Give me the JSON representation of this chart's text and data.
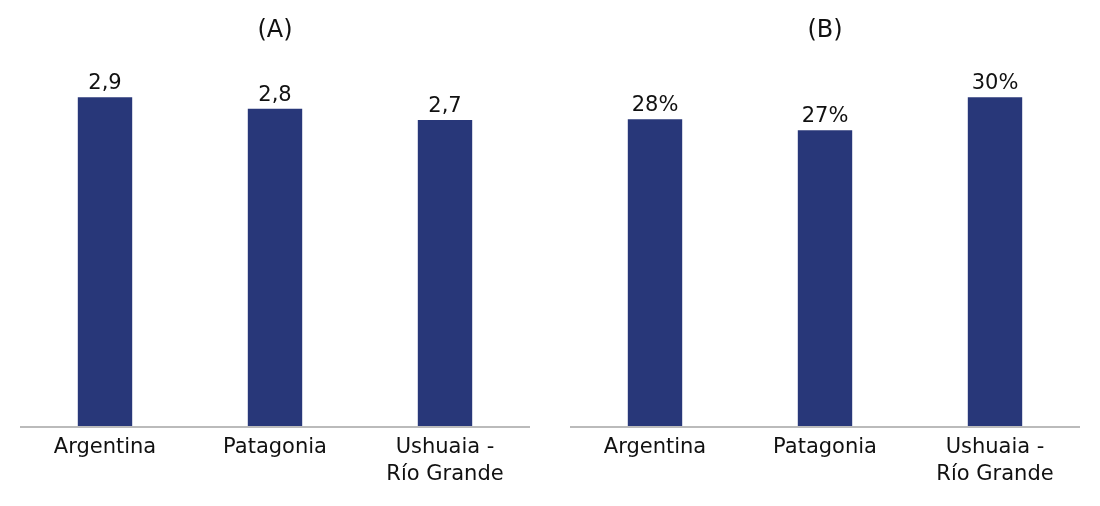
{
  "chart_data": [
    {
      "type": "bar",
      "title": "(A)",
      "categories": [
        "Argentina",
        "Patagonia",
        "Ushuaia - Río Grande"
      ],
      "values": [
        2.9,
        2.8,
        2.7
      ],
      "value_labels": [
        "2,9",
        "2,8",
        "2,7"
      ],
      "color": "#283779",
      "tick_labels": "x",
      "grid": false
    },
    {
      "type": "bar",
      "title": "(B)",
      "categories": [
        "Argentina",
        "Patagonia",
        "Ushuaia - Río Grande"
      ],
      "values": [
        28,
        27,
        30
      ],
      "value_labels": [
        "28%",
        "27%",
        "30%"
      ],
      "color": "#283779",
      "tick_labels": "x",
      "grid": false
    }
  ]
}
